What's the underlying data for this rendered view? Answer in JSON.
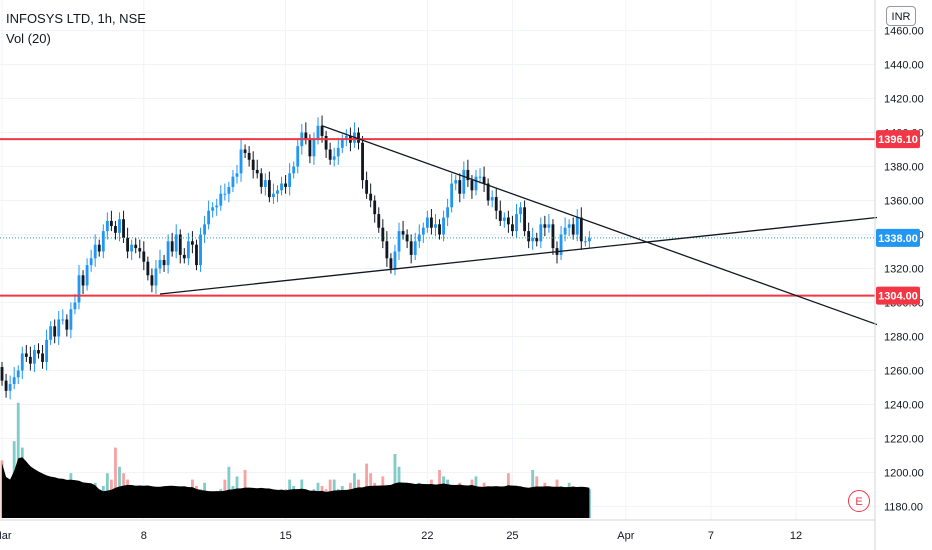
{
  "header": {
    "symbol_line": "INFOSYS LTD, 1h, NSE",
    "volume_line": "Vol (20)",
    "currency_button": "INR",
    "earnings_badge": "E"
  },
  "colors": {
    "up": "#2196f3",
    "down": "#131722",
    "vol_up": "#7fccc8",
    "vol_down": "#f5a3a3",
    "volume_ma": "#000000",
    "level_line": "#f23645",
    "trend_line": "#131722",
    "current_price_line": "#26a69a"
  },
  "chart_data": {
    "type": "candlestick",
    "y_axis": {
      "ticks": [
        1460,
        1440,
        1420,
        1400,
        1380,
        1360,
        1340,
        1320,
        1300,
        1280,
        1260,
        1240,
        1220,
        1200,
        1180
      ],
      "tick_labels": [
        "1460.00",
        "1440.00",
        "1420.00",
        "1400.00",
        "1380.00",
        "1360.00",
        "1340.00",
        "1320.00",
        "1300.00",
        "1280.00",
        "1260.00",
        "1240.00",
        "1220.00",
        "1200.00",
        "1180.00"
      ],
      "range": [
        1172,
        1478
      ]
    },
    "x_axis": {
      "ticks": [
        {
          "label": "Mar",
          "bar": 0
        },
        {
          "label": "8",
          "bar": 35
        },
        {
          "label": "15",
          "bar": 70
        },
        {
          "label": "22",
          "bar": 105
        },
        {
          "label": "25",
          "bar": 126
        },
        {
          "label": "Apr",
          "bar": 154
        },
        {
          "label": "7",
          "bar": 175
        },
        {
          "label": "12",
          "bar": 196
        }
      ],
      "bars_visible": 216
    },
    "price_levels": [
      {
        "price": 1396.1,
        "label": "1396.10",
        "kind": "horizontal-red"
      },
      {
        "price": 1338.0,
        "label": "1338.00",
        "kind": "current-price"
      },
      {
        "price": 1304.0,
        "label": "1304.00",
        "kind": "horizontal-red"
      }
    ],
    "trend_lines": [
      {
        "from": {
          "bar": 79,
          "price": 1404
        },
        "to": {
          "bar": 216,
          "price": 1287
        }
      },
      {
        "from": {
          "bar": 39,
          "price": 1305
        },
        "to": {
          "bar": 216,
          "price": 1350
        }
      }
    ],
    "candles": {
      "note": "hourly OHLC, approximate",
      "o": [
        1262,
        1254,
        1248,
        1252,
        1256,
        1260,
        1270,
        1268,
        1264,
        1272,
        1270,
        1265,
        1278,
        1286,
        1280,
        1290,
        1290,
        1284,
        1296,
        1300,
        1316,
        1310,
        1322,
        1326,
        1334,
        1330,
        1342,
        1348,
        1345,
        1341,
        1349,
        1338,
        1330,
        1334,
        1332,
        1330,
        1324,
        1316,
        1310,
        1320,
        1325,
        1322,
        1336,
        1330,
        1340,
        1328,
        1326,
        1336,
        1334,
        1322,
        1340,
        1346,
        1354,
        1356,
        1357,
        1364,
        1364,
        1368,
        1374,
        1376,
        1390,
        1388,
        1384,
        1378,
        1376,
        1368,
        1372,
        1362,
        1364,
        1366,
        1370,
        1368,
        1376,
        1380,
        1392,
        1400,
        1396,
        1386,
        1396,
        1404,
        1398,
        1390,
        1384,
        1386,
        1391,
        1396,
        1398,
        1394,
        1400,
        1394,
        1372,
        1364,
        1360,
        1352,
        1344,
        1336,
        1326,
        1320,
        1330,
        1342,
        1340,
        1336,
        1328,
        1336,
        1340,
        1344,
        1350,
        1344,
        1346,
        1340,
        1350,
        1356,
        1370,
        1372,
        1364,
        1378,
        1372,
        1366,
        1374,
        1374,
        1370,
        1360,
        1362,
        1354,
        1348,
        1350,
        1346,
        1342,
        1352,
        1356,
        1342,
        1336,
        1338,
        1336,
        1346,
        1344,
        1346,
        1332,
        1328,
        1340,
        1344,
        1346,
        1340,
        1350,
        1336,
        1336
      ],
      "c": [
        1254,
        1248,
        1252,
        1256,
        1260,
        1270,
        1268,
        1264,
        1272,
        1270,
        1265,
        1278,
        1286,
        1280,
        1290,
        1290,
        1284,
        1296,
        1300,
        1316,
        1310,
        1322,
        1326,
        1334,
        1330,
        1342,
        1348,
        1345,
        1341,
        1349,
        1338,
        1330,
        1334,
        1332,
        1330,
        1324,
        1316,
        1310,
        1320,
        1325,
        1322,
        1336,
        1330,
        1340,
        1328,
        1326,
        1336,
        1334,
        1322,
        1340,
        1346,
        1354,
        1356,
        1357,
        1364,
        1364,
        1368,
        1374,
        1376,
        1390,
        1388,
        1384,
        1378,
        1376,
        1368,
        1372,
        1362,
        1364,
        1366,
        1370,
        1368,
        1376,
        1380,
        1392,
        1400,
        1396,
        1386,
        1396,
        1404,
        1398,
        1390,
        1384,
        1386,
        1391,
        1396,
        1398,
        1394,
        1400,
        1394,
        1372,
        1364,
        1360,
        1352,
        1344,
        1336,
        1326,
        1320,
        1330,
        1342,
        1340,
        1336,
        1328,
        1336,
        1340,
        1344,
        1350,
        1344,
        1346,
        1340,
        1350,
        1356,
        1370,
        1372,
        1364,
        1378,
        1372,
        1366,
        1374,
        1374,
        1370,
        1360,
        1362,
        1354,
        1348,
        1350,
        1346,
        1342,
        1352,
        1356,
        1342,
        1336,
        1338,
        1336,
        1346,
        1344,
        1346,
        1332,
        1328,
        1340,
        1344,
        1346,
        1340,
        1350,
        1336,
        1336,
        1338
      ]
    },
    "volume": {
      "series_name": "Vol (20)",
      "values": [
        18,
        9,
        11,
        24,
        36,
        22,
        10,
        6,
        9,
        8,
        8,
        7,
        9,
        11,
        7,
        12,
        6,
        14,
        10,
        8,
        7,
        6,
        8,
        11,
        9,
        10,
        14,
        12,
        22,
        16,
        14,
        12,
        8,
        6,
        9,
        10,
        8,
        9,
        7,
        8,
        10,
        8,
        9,
        9,
        7,
        10,
        9,
        12,
        10,
        9,
        11,
        8,
        7,
        7,
        9,
        12,
        16,
        10,
        13,
        9,
        15,
        8,
        7,
        7,
        9,
        7,
        8,
        6,
        7,
        9,
        9,
        12,
        10,
        7,
        12,
        8,
        7,
        9,
        11,
        10,
        9,
        12,
        12,
        9,
        10,
        8,
        11,
        14,
        12,
        9,
        17,
        14,
        11,
        8,
        13,
        10,
        9,
        20,
        16,
        9,
        8,
        9,
        7,
        11,
        8,
        7,
        12,
        10,
        15,
        13,
        12,
        10,
        10,
        11,
        9,
        8,
        12,
        13,
        10,
        11,
        10,
        9,
        9,
        8,
        9,
        14,
        10,
        9,
        10,
        8,
        9,
        15,
        13,
        10,
        11,
        9,
        9,
        12,
        10,
        9,
        11,
        10,
        8,
        9,
        8,
        9
      ],
      "up": [
        0,
        0,
        1,
        1,
        1,
        1,
        0,
        0,
        1,
        0,
        0,
        1,
        1,
        0,
        1,
        0,
        0,
        1,
        1,
        1,
        0,
        1,
        1,
        1,
        0,
        1,
        1,
        0,
        0,
        1,
        0,
        0,
        1,
        0,
        0,
        0,
        0,
        0,
        1,
        1,
        0,
        1,
        0,
        1,
        0,
        0,
        1,
        0,
        0,
        1,
        1,
        1,
        1,
        1,
        1,
        0,
        1,
        1,
        1,
        1,
        0,
        0,
        0,
        0,
        0,
        1,
        0,
        1,
        1,
        1,
        0,
        1,
        1,
        1,
        1,
        0,
        0,
        1,
        1,
        0,
        0,
        0,
        1,
        1,
        1,
        1,
        0,
        1,
        0,
        0,
        0,
        0,
        0,
        0,
        0,
        0,
        0,
        1,
        1,
        0,
        0,
        0,
        1,
        1,
        1,
        1,
        0,
        1,
        0,
        1,
        1,
        1,
        1,
        0,
        1,
        0,
        0,
        1,
        0,
        0,
        0,
        1,
        0,
        0,
        1,
        0,
        0,
        1,
        1,
        0,
        0,
        1,
        0,
        1,
        0,
        1,
        0,
        0,
        1,
        1,
        1,
        0,
        1,
        0,
        0,
        1
      ]
    }
  }
}
